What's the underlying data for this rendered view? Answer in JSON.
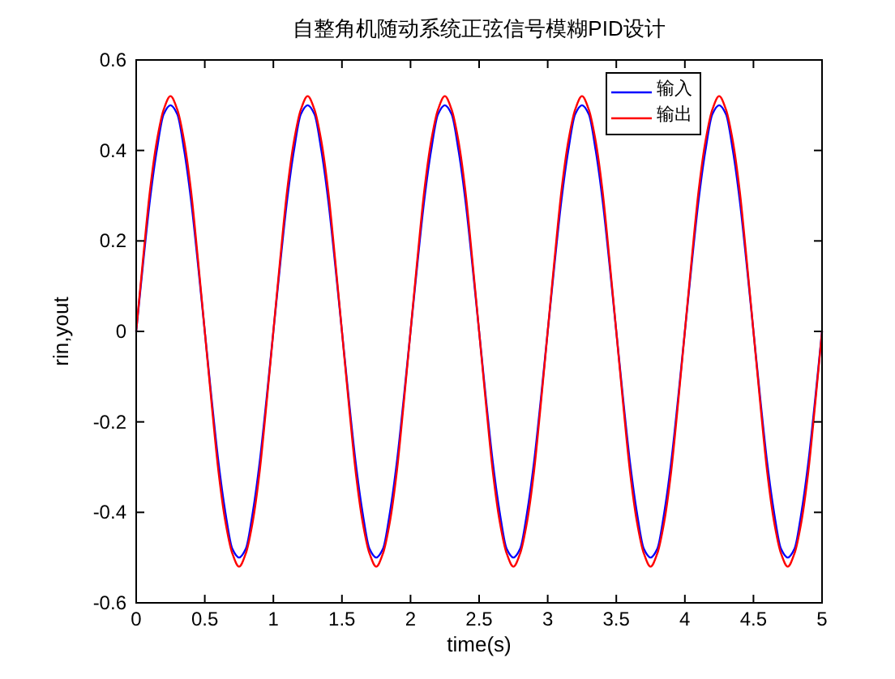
{
  "chart_data": {
    "type": "line",
    "title": "自整角机随动系统正弦信号模糊PID设计",
    "xlabel": "time(s)",
    "ylabel": "rin,yout",
    "x": [
      0,
      0.05,
      0.1,
      0.15,
      0.2,
      0.25,
      0.3,
      0.35,
      0.4,
      0.45,
      0.5,
      0.55,
      0.6,
      0.65,
      0.7,
      0.75,
      0.8,
      0.85,
      0.9,
      0.95,
      1,
      1.05,
      1.1,
      1.15,
      1.2,
      1.25,
      1.3,
      1.35,
      1.4,
      1.45,
      1.5,
      1.55,
      1.6,
      1.65,
      1.7,
      1.75,
      1.8,
      1.85,
      1.9,
      1.95,
      2,
      2.05,
      2.1,
      2.15,
      2.2,
      2.25,
      2.3,
      2.35,
      2.4,
      2.45,
      2.5,
      2.55,
      2.6,
      2.65,
      2.7,
      2.75,
      2.8,
      2.85,
      2.9,
      2.95,
      3,
      3.05,
      3.1,
      3.15,
      3.2,
      3.25,
      3.3,
      3.35,
      3.4,
      3.45,
      3.5,
      3.55,
      3.6,
      3.65,
      3.7,
      3.75,
      3.8,
      3.85,
      3.9,
      3.95,
      4,
      4.05,
      4.1,
      4.15,
      4.2,
      4.25,
      4.3,
      4.35,
      4.4,
      4.45,
      4.5,
      4.55,
      4.6,
      4.65,
      4.7,
      4.75,
      4.8,
      4.85,
      4.9,
      4.95,
      5
    ],
    "series": [
      {
        "name": "输入",
        "color": "#0000ff",
        "values": [
          0,
          0.15,
          0.29,
          0.4,
          0.48,
          0.5,
          0.48,
          0.4,
          0.29,
          0.15,
          0,
          -0.15,
          -0.29,
          -0.4,
          -0.48,
          -0.5,
          -0.48,
          -0.4,
          -0.29,
          -0.15,
          0,
          0.15,
          0.29,
          0.4,
          0.48,
          0.5,
          0.48,
          0.4,
          0.29,
          0.15,
          0,
          -0.15,
          -0.29,
          -0.4,
          -0.48,
          -0.5,
          -0.48,
          -0.4,
          -0.29,
          -0.15,
          0,
          0.15,
          0.29,
          0.4,
          0.48,
          0.5,
          0.48,
          0.4,
          0.29,
          0.15,
          0,
          -0.15,
          -0.29,
          -0.4,
          -0.48,
          -0.5,
          -0.48,
          -0.4,
          -0.29,
          -0.15,
          0,
          0.15,
          0.29,
          0.4,
          0.48,
          0.5,
          0.48,
          0.4,
          0.29,
          0.15,
          0,
          -0.15,
          -0.29,
          -0.4,
          -0.48,
          -0.5,
          -0.48,
          -0.4,
          -0.29,
          -0.15,
          0,
          0.15,
          0.29,
          0.4,
          0.48,
          0.5,
          0.48,
          0.4,
          0.29,
          0.15,
          0,
          -0.15,
          -0.29,
          -0.4,
          -0.48,
          -0.5,
          -0.48,
          -0.4,
          -0.29,
          -0.15,
          0
        ]
      },
      {
        "name": "输出",
        "color": "#ff0000",
        "values": [
          0,
          0.16,
          0.31,
          0.42,
          0.49,
          0.52,
          0.49,
          0.42,
          0.31,
          0.16,
          0,
          -0.16,
          -0.31,
          -0.42,
          -0.49,
          -0.52,
          -0.49,
          -0.42,
          -0.31,
          -0.16,
          0,
          0.16,
          0.31,
          0.42,
          0.49,
          0.52,
          0.49,
          0.42,
          0.31,
          0.16,
          0,
          -0.16,
          -0.31,
          -0.42,
          -0.49,
          -0.52,
          -0.49,
          -0.42,
          -0.31,
          -0.16,
          0,
          0.16,
          0.31,
          0.42,
          0.49,
          0.52,
          0.49,
          0.42,
          0.31,
          0.16,
          0,
          -0.16,
          -0.31,
          -0.42,
          -0.49,
          -0.52,
          -0.49,
          -0.42,
          -0.31,
          -0.16,
          0,
          0.16,
          0.31,
          0.42,
          0.49,
          0.52,
          0.49,
          0.42,
          0.31,
          0.16,
          0,
          -0.16,
          -0.31,
          -0.42,
          -0.49,
          -0.52,
          -0.49,
          -0.42,
          -0.31,
          -0.16,
          0,
          0.16,
          0.31,
          0.42,
          0.49,
          0.52,
          0.49,
          0.42,
          0.31,
          0.16,
          0,
          -0.16,
          -0.31,
          -0.42,
          -0.49,
          -0.52,
          -0.49,
          -0.42,
          -0.31,
          -0.16,
          0
        ]
      }
    ],
    "xlim": [
      0,
      5
    ],
    "ylim": [
      -0.6,
      0.6
    ],
    "xticks": [
      0,
      0.5,
      1,
      1.5,
      2,
      2.5,
      3,
      3.5,
      4,
      4.5,
      5
    ],
    "yticks": [
      -0.6,
      -0.4,
      -0.2,
      0,
      0.2,
      0.4,
      0.6
    ],
    "legend": "top right"
  }
}
